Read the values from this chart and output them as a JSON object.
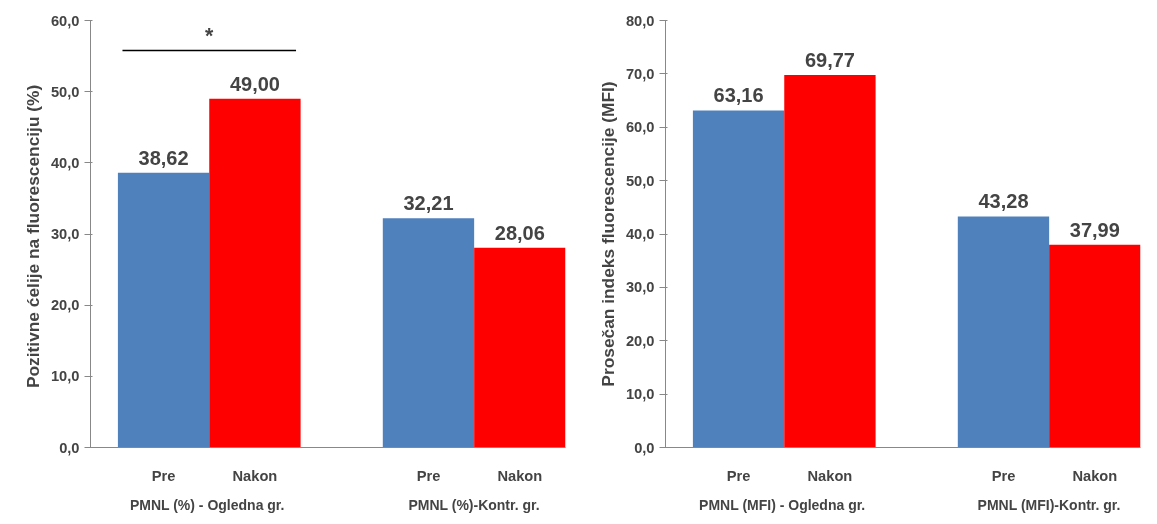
{
  "chart_data": [
    {
      "type": "bar",
      "ylabel": "Pozitivne ćelije na fluorescenciju  (%)",
      "categories": [
        "PMNL (%) -  Ogledna gr.",
        "PMNL (%)-Kontr. gr."
      ],
      "series": [
        {
          "name": "Pre",
          "color": "#4f81bd",
          "values": [
            38.62,
            32.21
          ],
          "value_labels": [
            "38,62",
            "32,21"
          ]
        },
        {
          "name": "Nakon",
          "color": "#ff0000",
          "values": [
            49.0,
            28.06
          ],
          "value_labels": [
            "49,00",
            "28,06"
          ]
        }
      ],
      "ylim": [
        0,
        60
      ],
      "yticks": [
        {
          "value": 0,
          "label": "0,0"
        },
        {
          "value": 10,
          "label": "10,0"
        },
        {
          "value": 20,
          "label": "20,0"
        },
        {
          "value": 30,
          "label": "30,0"
        },
        {
          "value": 40,
          "label": "40,0"
        },
        {
          "value": 50,
          "label": "50,0"
        },
        {
          "value": 60,
          "label": "60,0"
        }
      ],
      "annotations": [
        "*"
      ]
    },
    {
      "type": "bar",
      "ylabel": "Prosečan indeks fluorescencije (MFI)",
      "categories": [
        "PMNL (MFI) -  Ogledna gr.",
        "PMNL (MFI)-Kontr. gr."
      ],
      "series": [
        {
          "name": "Pre",
          "color": "#4f81bd",
          "values": [
            63.16,
            43.28
          ],
          "value_labels": [
            "63,16",
            "43,28"
          ]
        },
        {
          "name": "Nakon",
          "color": "#ff0000",
          "values": [
            69.77,
            37.99
          ],
          "value_labels": [
            "69,77",
            "37,99"
          ]
        }
      ],
      "ylim": [
        0,
        80
      ],
      "yticks": [
        {
          "value": 0,
          "label": "0,0"
        },
        {
          "value": 10,
          "label": "10,0"
        },
        {
          "value": 20,
          "label": "20,0"
        },
        {
          "value": 30,
          "label": "30,0"
        },
        {
          "value": 40,
          "label": "40,0"
        },
        {
          "value": 50,
          "label": "50,0"
        },
        {
          "value": 60,
          "label": "60,0"
        },
        {
          "value": 70,
          "label": "70,0"
        },
        {
          "value": 80,
          "label": "80,0"
        }
      ]
    }
  ]
}
